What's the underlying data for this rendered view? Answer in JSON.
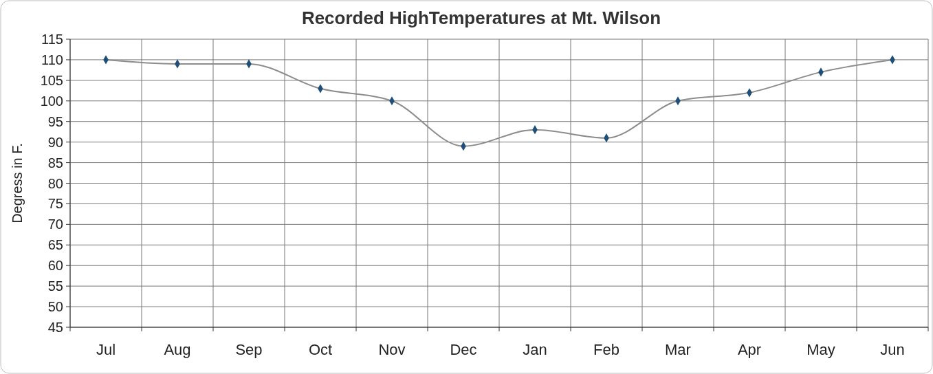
{
  "chart_data": {
    "type": "line",
    "title": "Recorded HighTemperatures at Mt. Wilson",
    "ylabel": "Degress in F.",
    "categories": [
      "Jul",
      "Aug",
      "Sep",
      "Oct",
      "Nov",
      "Dec",
      "Jan",
      "Feb",
      "Mar",
      "Apr",
      "May",
      "Jun"
    ],
    "series": [
      {
        "color": "#8c8c8c",
        "values": [
          110,
          109,
          109,
          103,
          100,
          89,
          93,
          91,
          100,
          102,
          107,
          110
        ]
      }
    ],
    "ylim": [
      45,
      115
    ],
    "yticks": [
      45,
      50,
      55,
      60,
      65,
      70,
      75,
      80,
      85,
      90,
      95,
      100,
      105,
      110,
      115
    ],
    "grid": true,
    "marker": "diamond",
    "line_style": "solid"
  }
}
